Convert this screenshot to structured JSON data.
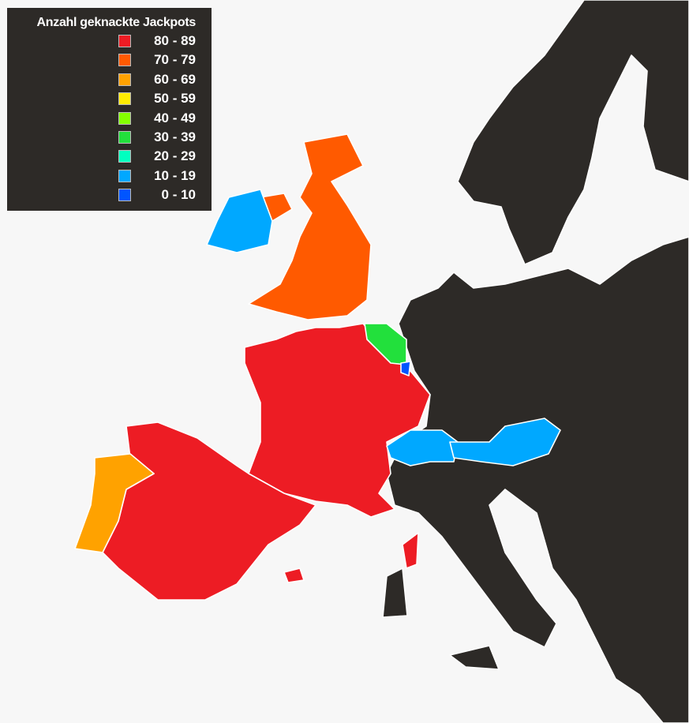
{
  "legend": {
    "title": "Anzahl geknackte Jackpots",
    "bins": [
      {
        "label": "80 - 89",
        "color": "#ed1c24"
      },
      {
        "label": "70 - 79",
        "color": "#ff5a00"
      },
      {
        "label": "60 - 69",
        "color": "#ffa200"
      },
      {
        "label": "50 - 59",
        "color": "#ffec00"
      },
      {
        "label": "40 - 49",
        "color": "#84ff00"
      },
      {
        "label": "30 - 39",
        "color": "#22e03c"
      },
      {
        "label": "20 - 29",
        "color": "#00ffc0"
      },
      {
        "label": "10 - 19",
        "color": "#00a8ff"
      },
      {
        "label": "0 - 10",
        "color": "#0055ff"
      }
    ]
  },
  "no_data_color": "#2d2a27",
  "regions": [
    {
      "id": "france",
      "bin": 0
    },
    {
      "id": "corsica",
      "bin": 0
    },
    {
      "id": "spain",
      "bin": 0
    },
    {
      "id": "balearics",
      "bin": 0
    },
    {
      "id": "united-kingdom",
      "bin": 1
    },
    {
      "id": "northern-ireland",
      "bin": 1
    },
    {
      "id": "portugal",
      "bin": 2
    },
    {
      "id": "belgium",
      "bin": 5
    },
    {
      "id": "ireland",
      "bin": 7
    },
    {
      "id": "switzerland",
      "bin": 7
    },
    {
      "id": "austria",
      "bin": 7
    },
    {
      "id": "luxembourg",
      "bin": 8
    }
  ]
}
